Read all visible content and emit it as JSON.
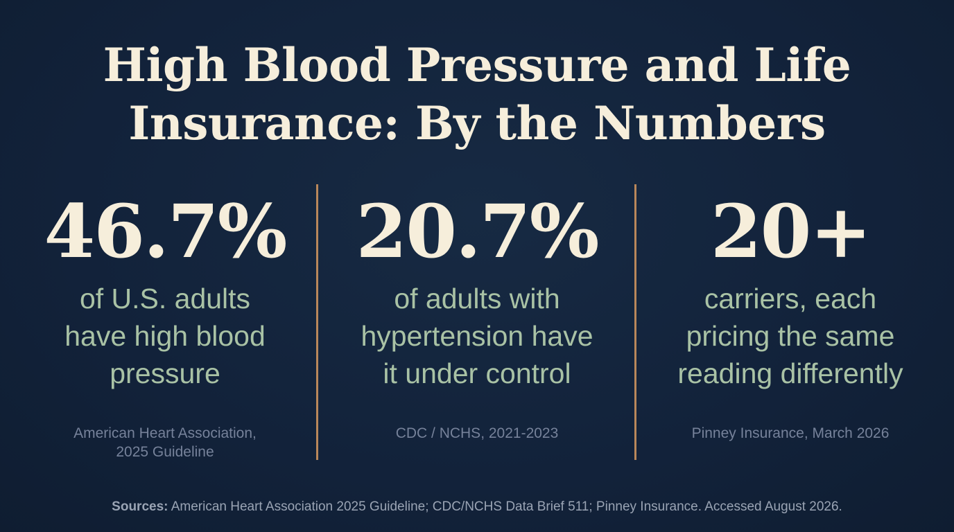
{
  "title": {
    "line1": "High Blood Pressure and Life",
    "line2": "Insurance: By the Numbers"
  },
  "stats": [
    {
      "value": "46.7%",
      "description": [
        "of U.S. adults",
        "have high blood",
        "pressure"
      ],
      "source": [
        "American Heart Association,",
        "2025 Guideline"
      ]
    },
    {
      "value": "20.7%",
      "description": [
        "of adults with",
        "hypertension have",
        "it under control"
      ],
      "source": [
        "CDC / NCHS, 2021-2023"
      ]
    },
    {
      "value": "20+",
      "description": [
        "carriers, each",
        "pricing the same",
        "reading differently"
      ],
      "source": [
        "Pinney Insurance, March 2026"
      ]
    }
  ],
  "footer": {
    "label": "Sources:",
    "text": " American Heart Association 2025 Guideline; CDC/NCHS Data Brief 511; Pinney Insurance. Accessed August 2026."
  },
  "colors": {
    "background": "#13233a",
    "title": "#f6eedb",
    "description": "#a9c2a5",
    "source": "#76829a",
    "divider": "#b9875a"
  }
}
